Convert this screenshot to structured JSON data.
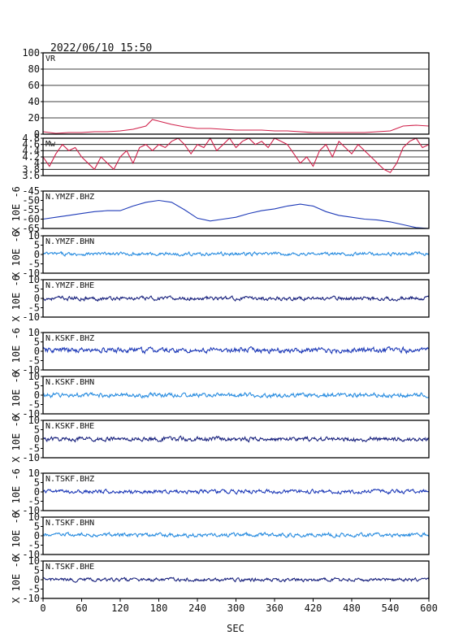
{
  "chart_data": {
    "type": "line",
    "title": "2022/06/10 15:50",
    "xlabel": "SEC",
    "xlim": [
      0,
      600
    ],
    "xticks": [
      0,
      60,
      120,
      180,
      240,
      300,
      360,
      420,
      480,
      540,
      600
    ],
    "panels": [
      {
        "name": "VR",
        "label": "VR",
        "ylim": [
          0,
          100
        ],
        "yticks": [
          0,
          20,
          40,
          60,
          80,
          100
        ],
        "grid": true,
        "color": "#d0204a",
        "x": [
          0,
          20,
          40,
          60,
          80,
          100,
          120,
          140,
          160,
          170,
          180,
          200,
          220,
          240,
          260,
          280,
          300,
          320,
          340,
          360,
          380,
          400,
          420,
          440,
          460,
          480,
          500,
          520,
          540,
          560,
          580,
          600
        ],
        "y": [
          3,
          1,
          2,
          2,
          3,
          3,
          4,
          6,
          10,
          18,
          16,
          12,
          9,
          7,
          7,
          6,
          5,
          5,
          5,
          4,
          4,
          3,
          2,
          2,
          2,
          2,
          2,
          3,
          4,
          10,
          11,
          10
        ]
      },
      {
        "name": "Mw",
        "label": "Mw",
        "ylim": [
          3.6,
          4.8
        ],
        "yticks": [
          3.6,
          3.8,
          4.0,
          4.2,
          4.4,
          4.6,
          4.8
        ],
        "ytickLabels": [
          "3.6",
          "3.8",
          "4",
          "4.2",
          "4.4",
          "4.6",
          "4.8"
        ],
        "grid": true,
        "color": "#d0204a",
        "x": [
          0,
          10,
          20,
          30,
          40,
          50,
          60,
          70,
          80,
          90,
          100,
          110,
          120,
          130,
          140,
          150,
          160,
          170,
          180,
          190,
          200,
          210,
          220,
          230,
          240,
          250,
          260,
          270,
          280,
          290,
          300,
          310,
          320,
          330,
          340,
          350,
          360,
          370,
          380,
          390,
          400,
          410,
          420,
          430,
          440,
          450,
          460,
          470,
          480,
          490,
          500,
          510,
          520,
          530,
          540,
          550,
          560,
          570,
          580,
          590,
          600
        ],
        "y": [
          4.2,
          3.9,
          4.3,
          4.6,
          4.4,
          4.5,
          4.2,
          4.0,
          3.8,
          4.2,
          4.0,
          3.8,
          4.2,
          4.4,
          4.0,
          4.5,
          4.6,
          4.4,
          4.6,
          4.5,
          4.7,
          4.8,
          4.6,
          4.3,
          4.6,
          4.5,
          4.8,
          4.4,
          4.6,
          4.8,
          4.5,
          4.7,
          4.8,
          4.6,
          4.7,
          4.5,
          4.8,
          4.7,
          4.6,
          4.3,
          4.0,
          4.2,
          3.9,
          4.4,
          4.6,
          4.2,
          4.7,
          4.5,
          4.3,
          4.6,
          4.4,
          4.2,
          4.0,
          3.8,
          3.7,
          4.0,
          4.5,
          4.7,
          4.8,
          4.5,
          4.6
        ]
      },
      {
        "name": "N.YMZF.BHZ",
        "label": "N.YMZF.BHZ",
        "ylim": [
          -65,
          -45
        ],
        "yticks": [
          -65,
          -60,
          -55,
          -50,
          -45
        ],
        "ytickLabels": [
          "-65",
          "-60",
          "-55",
          "-50",
          "-45"
        ],
        "yunit": "X 10E -6",
        "color": "#1f3bb8",
        "x": [
          0,
          20,
          40,
          60,
          80,
          100,
          120,
          140,
          160,
          180,
          200,
          220,
          240,
          260,
          280,
          300,
          320,
          340,
          360,
          380,
          400,
          420,
          440,
          460,
          480,
          500,
          520,
          540,
          560,
          580,
          600
        ],
        "y": [
          -60,
          -59,
          -58,
          -57,
          -56,
          -55.5,
          -55.5,
          -53,
          -51,
          -50,
          -51,
          -55,
          -59.5,
          -61,
          -60,
          -59,
          -57,
          -55.5,
          -54.5,
          -53,
          -52,
          -53,
          -56,
          -58,
          -59,
          -60,
          -60.5,
          -61.5,
          -63,
          -64.5,
          -66
        ]
      },
      {
        "name": "N.YMZF.BHN",
        "label": "N.YMZF.BHN",
        "ylim": [
          -10,
          10
        ],
        "yticks": [
          -10,
          -5,
          0,
          5,
          10
        ],
        "ytickLabels": [
          "-10",
          "-5",
          "0",
          "5",
          "10"
        ],
        "yunit": "X 10E -6",
        "color": "#2a8de0",
        "noise": {
          "amplitude": 0.7,
          "offset": 0.3
        }
      },
      {
        "name": "N.YMZF.BHE",
        "label": "N.YMZF.BHE",
        "ylim": [
          -10,
          10
        ],
        "yticks": [
          -10,
          -5,
          0,
          5,
          10
        ],
        "ytickLabels": [
          "-10",
          "-5",
          "0",
          "5",
          "10"
        ],
        "yunit": "X 10E -6",
        "color": "#1a237e",
        "noise": {
          "amplitude": 0.8,
          "offset": 0.0
        }
      },
      {
        "name": "N.KSKF.BHZ",
        "label": "N.KSKF.BHZ",
        "ylim": [
          -10,
          10
        ],
        "yticks": [
          -10,
          -5,
          0,
          5,
          10
        ],
        "ytickLabels": [
          "-10",
          "-5",
          "0",
          "5",
          "10"
        ],
        "yunit": "X 10E -6",
        "color": "#1f3bb8",
        "noise": {
          "amplitude": 1.1,
          "offset": 0.5
        }
      },
      {
        "name": "N.KSKF.BHN",
        "label": "N.KSKF.BHN",
        "ylim": [
          -10,
          10
        ],
        "yticks": [
          -10,
          -5,
          0,
          5,
          10
        ],
        "ytickLabels": [
          "-10",
          "-5",
          "0",
          "5",
          "10"
        ],
        "yunit": "X 10E -6",
        "color": "#2a8de0",
        "noise": {
          "amplitude": 0.9,
          "offset": 0.0
        }
      },
      {
        "name": "N.KSKF.BHE",
        "label": "N.KSKF.BHE",
        "ylim": [
          -10,
          10
        ],
        "yticks": [
          -10,
          -5,
          0,
          5,
          10
        ],
        "ytickLabels": [
          "-10",
          "-5",
          "0",
          "5",
          "10"
        ],
        "yunit": "X 10E -6",
        "color": "#1a237e",
        "noise": {
          "amplitude": 0.9,
          "offset": 0.0
        }
      },
      {
        "name": "N.TSKF.BHZ",
        "label": "N.TSKF.BHZ",
        "ylim": [
          -10,
          10
        ],
        "yticks": [
          -10,
          -5,
          0,
          5,
          10
        ],
        "ytickLabels": [
          "-10",
          "-5",
          "0",
          "5",
          "10"
        ],
        "yunit": "X 10E -6",
        "color": "#1f3bb8",
        "noise": {
          "amplitude": 0.8,
          "offset": 0.2
        }
      },
      {
        "name": "N.TSKF.BHN",
        "label": "N.TSKF.BHN",
        "ylim": [
          -10,
          10
        ],
        "yticks": [
          -10,
          -5,
          0,
          5,
          10
        ],
        "ytickLabels": [
          "-10",
          "-5",
          "0",
          "5",
          "10"
        ],
        "yunit": "X 10E -6",
        "color": "#2a8de0",
        "noise": {
          "amplitude": 0.8,
          "offset": 0.5
        }
      },
      {
        "name": "N.TSKF.BHE",
        "label": "N.TSKF.BHE",
        "ylim": [
          -10,
          10
        ],
        "yticks": [
          -10,
          -5,
          0,
          5,
          10
        ],
        "ytickLabels": [
          "-10",
          "-5",
          "0",
          "5",
          "10"
        ],
        "yunit": "X 10E -6",
        "color": "#1a237e",
        "noise": {
          "amplitude": 0.7,
          "offset": 0.0
        }
      }
    ]
  }
}
